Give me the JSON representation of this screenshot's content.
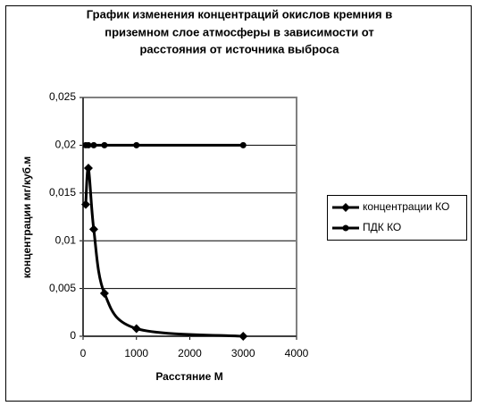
{
  "chart_data": {
    "type": "line",
    "title": [
      "График изменения концентраций окислов кремния в",
      "приземном слое атмосферы в зависимости от",
      "расстояния от источника выброса"
    ],
    "xlabel": "Расстяние М",
    "ylabel": "концентрации мг/куб.м",
    "series": [
      {
        "name": "концентрации КО",
        "color": "#000000",
        "marker": "diamond",
        "smooth": true,
        "x": [
          50,
          100,
          200,
          400,
          1000,
          3000
        ],
        "values": [
          0.0138,
          0.0176,
          0.0112,
          0.0045,
          0.0008,
          0
        ]
      },
      {
        "name": "ПДК КО",
        "color": "#000000",
        "marker": "circle",
        "smooth": false,
        "x": [
          50,
          100,
          200,
          400,
          1000,
          3000
        ],
        "values": [
          0.02,
          0.02,
          0.02,
          0.02,
          0.02,
          0.02
        ]
      }
    ],
    "xlim": [
      0,
      4000
    ],
    "xticks": [
      0,
      1000,
      2000,
      3000,
      4000
    ],
    "ylim": [
      0,
      0.025
    ],
    "yticks": [
      0,
      {
        "value": 0.005,
        "label": "0,005"
      },
      {
        "value": 0.01,
        "label": "0,01"
      },
      {
        "value": 0.015,
        "label": "0,015"
      },
      {
        "value": 0.02,
        "label": "0,02"
      },
      {
        "value": 0.025,
        "label": "0,025"
      }
    ],
    "grid": true,
    "legend": "right"
  }
}
